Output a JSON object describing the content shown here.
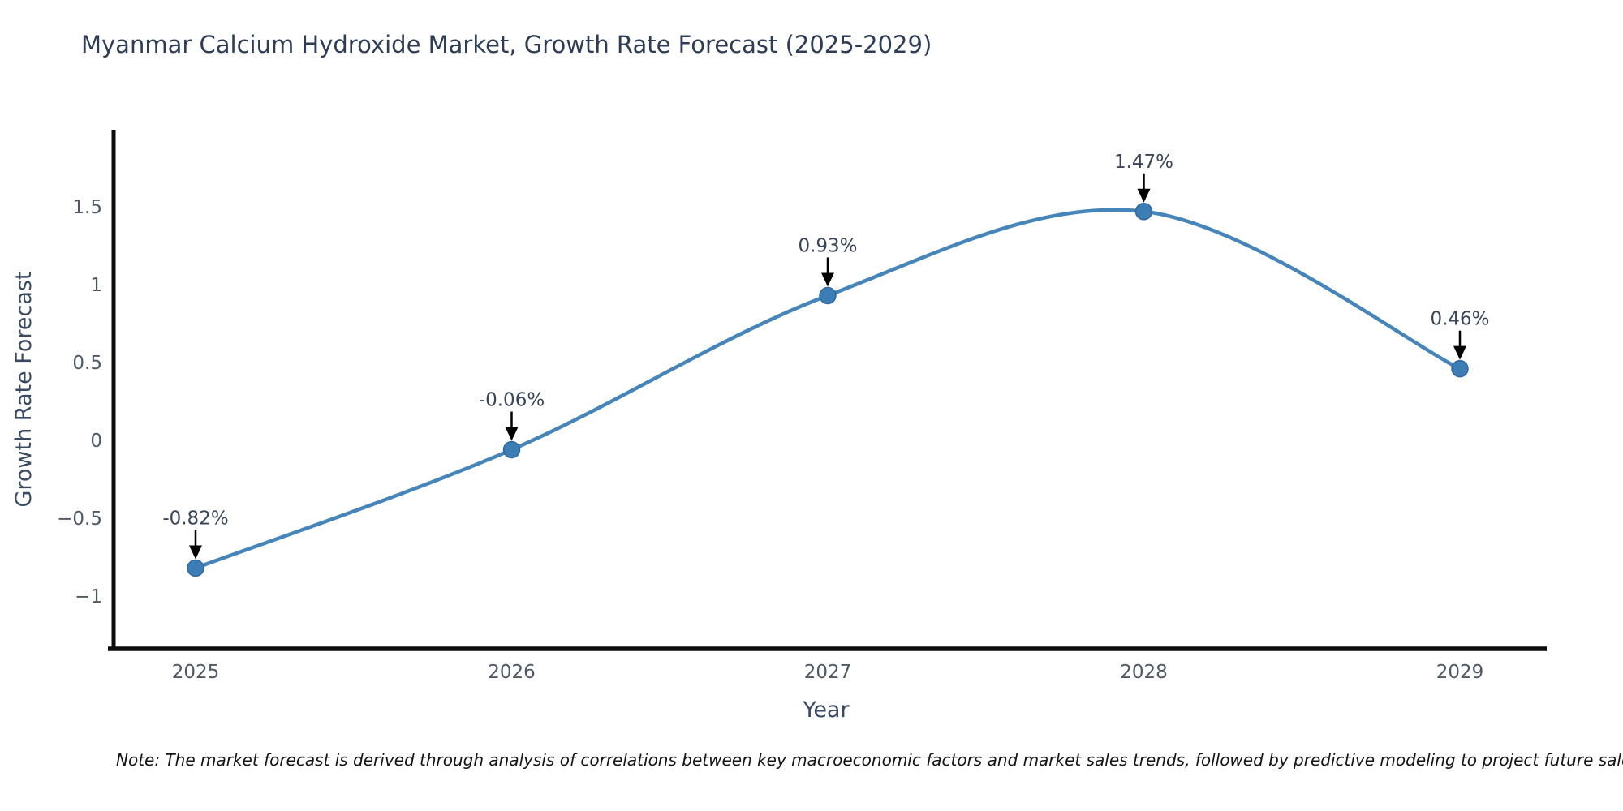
{
  "chart_data": {
    "type": "line",
    "title": "Myanmar Calcium Hydroxide Market, Growth Rate Forecast (2025-2029)",
    "xlabel": "Year",
    "ylabel": "Growth Rate Forecast",
    "x": [
      2025,
      2026,
      2027,
      2028,
      2029
    ],
    "values": [
      -0.82,
      -0.06,
      0.93,
      1.47,
      0.46
    ],
    "point_labels": [
      "-0.82%",
      "-0.06%",
      "0.93%",
      "1.47%",
      "0.46%"
    ],
    "xtick_labels": [
      "2025",
      "2026",
      "2027",
      "2028",
      "2029"
    ],
    "ytick_values": [
      1.5,
      1.0,
      0.5,
      0.0,
      -0.5,
      -1.0
    ],
    "ytick_labels": [
      "1.5",
      "1",
      "0.5",
      "0",
      "−0.5",
      "−1"
    ],
    "xlim": [
      2024.74,
      2029.27
    ],
    "ylim": [
      -1.37,
      2.0
    ],
    "grid": false,
    "legend": false,
    "smooth": true,
    "colors": {
      "line": "#4685BA",
      "marker": "#3C7DB6",
      "marker_edge": "#30699E",
      "arrow": "#000000",
      "spine": "#0D0D0D",
      "title": "#2E3C55",
      "axis_label": "#3B4A63",
      "tick_label": "#4F5866",
      "annotation": "#3A4458"
    }
  },
  "note": {
    "text": "Note: The market forecast is derived through analysis of correlations between key macroeconomic factors and market sales trends, followed by predictive modeling to project future sales"
  }
}
